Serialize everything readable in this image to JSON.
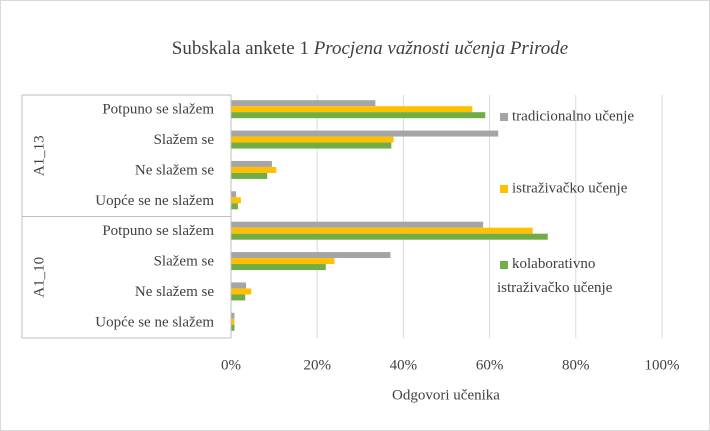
{
  "chart_data": {
    "type": "hbar",
    "title": {
      "text": "Subskala ankete 1",
      "italic": "Procjena važnosti učenja Prirode"
    },
    "x_label": "Odgovori učenika",
    "category_groups": [
      {
        "name": "A1_13",
        "categories": [
          "Potpuno se slažem",
          "Slažem se",
          "Ne slažem se",
          "Uopće se ne slažem"
        ]
      },
      {
        "name": "A1_10",
        "categories": [
          "Potpuno se slažem",
          "Slažem se",
          "Ne slažem se",
          "Uopće se ne slažem"
        ]
      }
    ],
    "series": [
      {
        "name": "tradicionalno učenje",
        "color": "#a5a5a5",
        "values": [
          33.5,
          62,
          9.5,
          1.2,
          58.5,
          37,
          3.5,
          0.8
        ]
      },
      {
        "name": "istraživačko učenje",
        "color": "#ffc000",
        "values": [
          56,
          37.7,
          10.5,
          2.3,
          70,
          24,
          4.7,
          0.8
        ]
      },
      {
        "name": "kolaborativno istraživačko učenje",
        "color": "#70ad47",
        "values": [
          59,
          37.2,
          8.4,
          1.6,
          73.5,
          22,
          3.3,
          0.8
        ]
      }
    ],
    "xlim": [
      0,
      100
    ],
    "xticks": [
      {
        "value": 0,
        "label": "0%"
      },
      {
        "value": 20,
        "label": "20%"
      },
      {
        "value": 40,
        "label": "40%"
      },
      {
        "value": 60,
        "label": "60%"
      },
      {
        "value": 80,
        "label": "80%"
      },
      {
        "value": 100,
        "label": "100%"
      }
    ],
    "grid": true,
    "legend": "right"
  }
}
